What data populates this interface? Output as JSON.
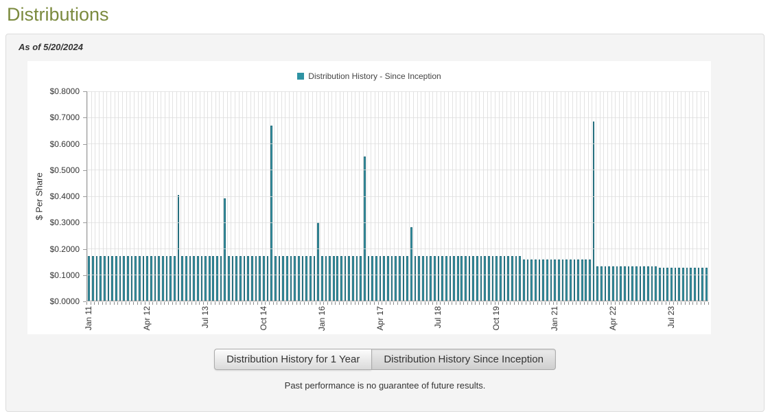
{
  "page": {
    "title": "Distributions",
    "as_of": "As of 5/20/2024",
    "footnote": "Past performance is no guarantee of future results."
  },
  "buttons": {
    "one_year_label": "Distribution History for 1 Year",
    "since_inception_label": "Distribution History Since Inception"
  },
  "colors": {
    "title": "#7b8a3e",
    "bar_fill": "#3a96a6",
    "bar_border": "#256f7e",
    "legend_swatch": "#2e93a3"
  },
  "chart_data": {
    "type": "bar",
    "legend": "Distribution History - Since Inception",
    "ylabel": "$ Per Share",
    "ylim": [
      0,
      0.8
    ],
    "y_tick_step": 0.1,
    "y_tick_labels_top_to_bottom": [
      "$0.8000",
      "$0.7000",
      "$0.6000",
      "$0.5000",
      "$0.4000",
      "$0.3000",
      "$0.2000",
      "$0.1000",
      "$0.0000"
    ],
    "x_ticks": [
      {
        "i": 0,
        "label": "Jan 11"
      },
      {
        "i": 15,
        "label": "Apr 12"
      },
      {
        "i": 30,
        "label": "Jul 13"
      },
      {
        "i": 45,
        "label": "Oct 14"
      },
      {
        "i": 60,
        "label": "Jan 16"
      },
      {
        "i": 75,
        "label": "Apr 17"
      },
      {
        "i": 90,
        "label": "Jul 18"
      },
      {
        "i": 105,
        "label": "Oct 19"
      },
      {
        "i": 120,
        "label": "Jan 21"
      },
      {
        "i": 135,
        "label": "Apr 22"
      },
      {
        "i": 150,
        "label": "Jul 23"
      }
    ],
    "grid": true,
    "legend_position": "top-center",
    "values": [
      0.17,
      0.17,
      0.17,
      0.17,
      0.17,
      0.17,
      0.17,
      0.17,
      0.17,
      0.17,
      0.17,
      0.17,
      0.17,
      0.17,
      0.17,
      0.17,
      0.17,
      0.17,
      0.17,
      0.17,
      0.17,
      0.17,
      0.17,
      0.405,
      0.17,
      0.17,
      0.17,
      0.17,
      0.17,
      0.17,
      0.17,
      0.17,
      0.17,
      0.17,
      0.17,
      0.39,
      0.17,
      0.17,
      0.17,
      0.17,
      0.17,
      0.17,
      0.17,
      0.17,
      0.17,
      0.17,
      0.17,
      0.67,
      0.17,
      0.17,
      0.17,
      0.17,
      0.17,
      0.17,
      0.17,
      0.17,
      0.17,
      0.17,
      0.17,
      0.3,
      0.17,
      0.17,
      0.17,
      0.17,
      0.17,
      0.17,
      0.17,
      0.17,
      0.17,
      0.17,
      0.17,
      0.55,
      0.17,
      0.17,
      0.17,
      0.17,
      0.17,
      0.17,
      0.17,
      0.17,
      0.17,
      0.17,
      0.17,
      0.28,
      0.17,
      0.17,
      0.17,
      0.17,
      0.17,
      0.17,
      0.17,
      0.17,
      0.17,
      0.17,
      0.17,
      0.17,
      0.17,
      0.17,
      0.17,
      0.17,
      0.17,
      0.17,
      0.17,
      0.17,
      0.17,
      0.17,
      0.17,
      0.17,
      0.17,
      0.17,
      0.17,
      0.17,
      0.158,
      0.158,
      0.158,
      0.158,
      0.158,
      0.158,
      0.158,
      0.158,
      0.158,
      0.158,
      0.158,
      0.158,
      0.158,
      0.158,
      0.158,
      0.158,
      0.158,
      0.158,
      0.685,
      0.132,
      0.132,
      0.132,
      0.132,
      0.132,
      0.132,
      0.132,
      0.132,
      0.132,
      0.132,
      0.132,
      0.132,
      0.132,
      0.132,
      0.132,
      0.132,
      0.125,
      0.125,
      0.125,
      0.125,
      0.125,
      0.125,
      0.125,
      0.125,
      0.125,
      0.125,
      0.125,
      0.125,
      0.125
    ]
  }
}
